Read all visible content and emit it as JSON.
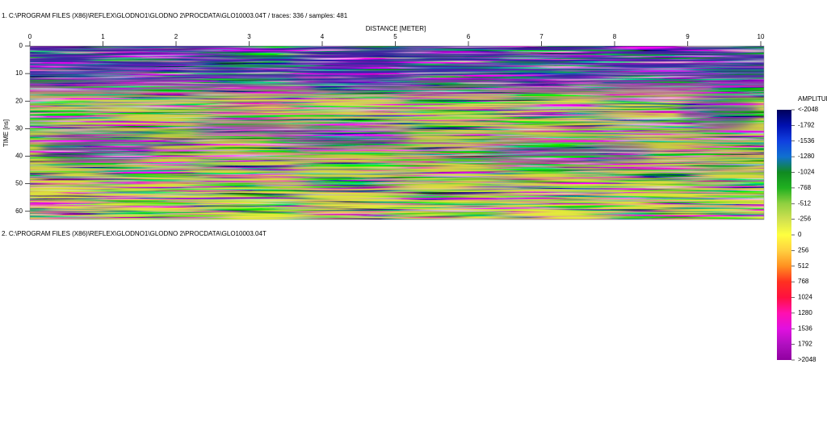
{
  "header": {
    "line1": "1. C:\\PROGRAM FILES (X86)\\REFLEX\\GLODNO1\\GLODNO 2\\PROCDATA\\GLO10003.04T  / traces: 336 / samples: 481",
    "line2": "2. C:\\PROGRAM FILES (X86)\\REFLEX\\GLODNO1\\GLODNO 2\\PROCDATA\\GLO10003.04T"
  },
  "profile": {
    "x_label": "DISTANCE [METER]",
    "y_label": "TIME [ns]",
    "xlim": [
      0,
      10
    ],
    "xticks": [
      0,
      1,
      2,
      3,
      4,
      5,
      6,
      7,
      8,
      9,
      10
    ],
    "ylim": [
      0,
      63
    ],
    "yticks": [
      0,
      10,
      20,
      30,
      40,
      50,
      60
    ]
  },
  "colorbar": {
    "title": "AMPLITUDE",
    "ticks": [
      {
        "value": -2048,
        "label": "<-2048"
      },
      -1792,
      -1536,
      -1280,
      -1024,
      -768,
      -512,
      -256,
      0,
      256,
      512,
      768,
      1024,
      1280,
      1536,
      1792,
      {
        "value": 2048,
        "label": ">2048"
      }
    ],
    "colors": [
      "#00005a",
      "#0010b0",
      "#1040e0",
      "#1070d0",
      "#108a20",
      "#20b020",
      "#90d040",
      "#d0e050",
      "#ffff40",
      "#ffd040",
      "#ff9020",
      "#ff3020",
      "#ff1040",
      "#ff10b0",
      "#e010e0",
      "#b010c0",
      "#9000a0"
    ]
  }
}
